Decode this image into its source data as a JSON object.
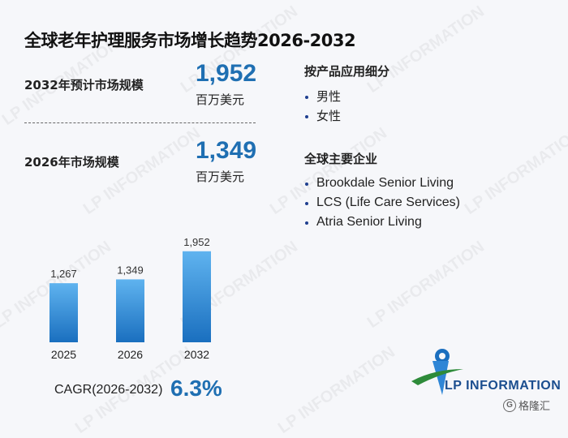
{
  "title": "全球老年护理服务市场增长趋势2026-2032",
  "stats": [
    {
      "label": "2032年预计市场规模",
      "value": "1,952",
      "unit": "百万美元"
    },
    {
      "label": "2026年市场规模",
      "value": "1,349",
      "unit": "百万美元"
    }
  ],
  "segments": {
    "title": "按产品应用细分",
    "items": [
      "男性",
      "女性"
    ]
  },
  "companies": {
    "title": "全球主要企业",
    "items": [
      "Brookdale Senior Living",
      "LCS (Life Care Services)",
      "Atria Senior Living"
    ]
  },
  "cagr": {
    "label": "CAGR(2026-2032)",
    "value": "6.3%"
  },
  "logo": {
    "text": "LP INFORMATION"
  },
  "watermark": {
    "text": "LP INFORMATION",
    "corner": "格隆汇"
  },
  "colors": {
    "accent": "#1f6fb2",
    "bar_top": "#5fb3ef",
    "bar_bottom": "#1a6fbf",
    "logo_green": "#2e8b3a"
  },
  "chart_data": {
    "type": "bar",
    "categories": [
      "2025",
      "2026",
      "2032"
    ],
    "values": [
      1267,
      1349,
      1952
    ],
    "data_labels": [
      "1,267",
      "1,349",
      "1,952"
    ],
    "title": "",
    "xlabel": "",
    "ylabel": "",
    "ylim": [
      0,
      2000
    ],
    "grid": false,
    "legend": "none"
  }
}
